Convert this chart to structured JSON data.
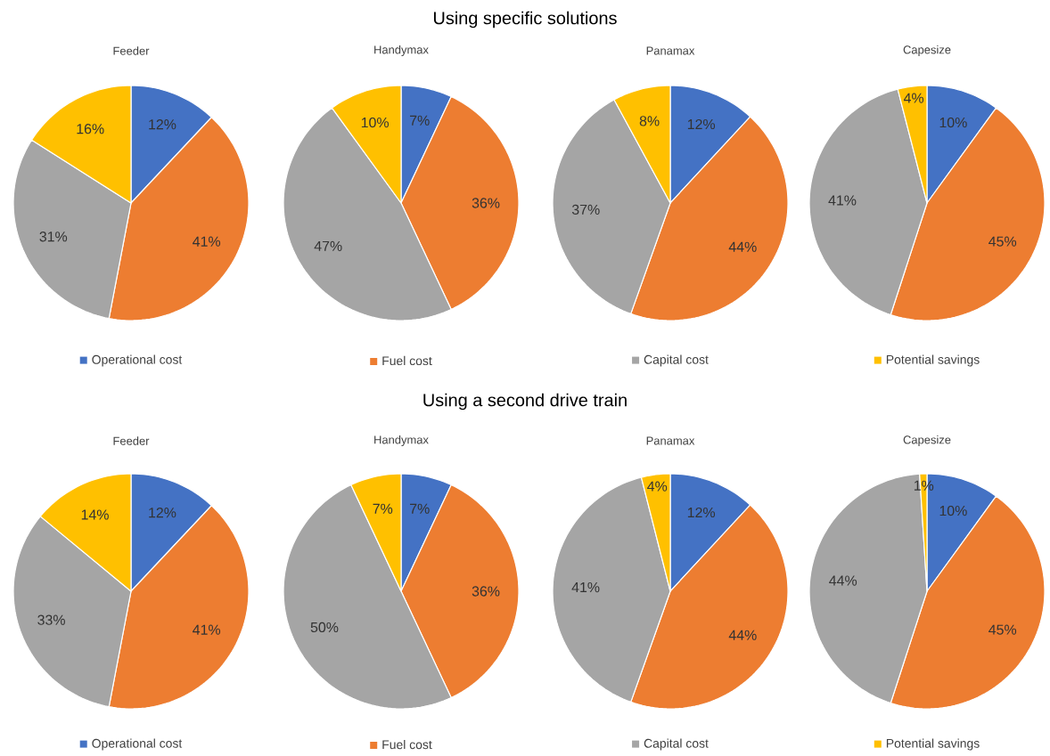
{
  "chart_data": [
    {
      "type": "other",
      "title": "Using specific solutions"
    },
    {
      "type": "pie",
      "title": "Feeder",
      "categories": [
        "Operational cost",
        "Fuel cost",
        "Capital cost",
        "Potential savings"
      ],
      "values": [
        12,
        41,
        31,
        16
      ],
      "value_labels": [
        "12%",
        "41%",
        "31%",
        "16%"
      ],
      "colors": [
        "#4472c4",
        "#ed7d31",
        "#a5a5a5",
        "#ffc000"
      ],
      "legend": "bottom"
    },
    {
      "type": "pie",
      "title": "Handymax",
      "categories": [
        null,
        null,
        null,
        null
      ],
      "values": [
        7,
        36,
        47,
        10
      ],
      "value_labels": [
        "7%",
        "36%",
        "47%",
        "10%"
      ],
      "colors": [
        "#4472c4",
        "#ed7d31",
        "#a5a5a5",
        "#ffc000"
      ]
    },
    {
      "type": "pie",
      "title": "Panamax",
      "categories": [
        null,
        null,
        null,
        null
      ],
      "values": [
        12,
        44,
        37,
        8
      ],
      "value_labels": [
        "12%",
        "44%",
        "37%",
        "8%"
      ],
      "colors": [
        "#4472c4",
        "#ed7d31",
        "#a5a5a5",
        "#ffc000"
      ]
    },
    {
      "type": "pie",
      "title": "Capesize",
      "categories": [
        null,
        null,
        null,
        null
      ],
      "values": [
        10,
        45,
        41,
        4
      ],
      "value_labels": [
        "10%",
        "45%",
        "41%",
        "4%"
      ],
      "colors": [
        "#4472c4",
        "#ed7d31",
        "#a5a5a5",
        "#ffc000"
      ]
    },
    {
      "type": "other",
      "title": "Using a second drive train"
    },
    {
      "type": "pie",
      "title": "Feeder",
      "categories": [
        "Operational cost",
        "Fuel cost",
        "Capital cost",
        "Potential savings"
      ],
      "values": [
        12,
        41,
        33,
        14
      ],
      "value_labels": [
        "12%",
        "41%",
        "33%",
        "14%"
      ],
      "colors": [
        "#4472c4",
        "#ed7d31",
        "#a5a5a5",
        "#ffc000"
      ],
      "legend": "bottom"
    },
    {
      "type": "pie",
      "title": "Handymax",
      "categories": [
        null,
        null,
        null,
        null
      ],
      "values": [
        7,
        36,
        50,
        7
      ],
      "value_labels": [
        "7%",
        "36%",
        "50%",
        "7%"
      ],
      "colors": [
        "#4472c4",
        "#ed7d31",
        "#a5a5a5",
        "#ffc000"
      ]
    },
    {
      "type": "pie",
      "title": "Panamax",
      "categories": [
        null,
        null,
        null,
        null
      ],
      "values": [
        12,
        44,
        41,
        4
      ],
      "value_labels": [
        "12%",
        "44%",
        "41%",
        "4%"
      ],
      "colors": [
        "#4472c4",
        "#ed7d31",
        "#a5a5a5",
        "#ffc000"
      ]
    },
    {
      "type": "pie",
      "title": "Capesize",
      "categories": [
        null,
        null,
        null,
        null
      ],
      "values": [
        10,
        45,
        44,
        1
      ],
      "value_labels": [
        "10%",
        "45%",
        "44%",
        "1%"
      ],
      "colors": [
        "#4472c4",
        "#ed7d31",
        "#a5a5a5",
        "#ffc000"
      ]
    }
  ]
}
